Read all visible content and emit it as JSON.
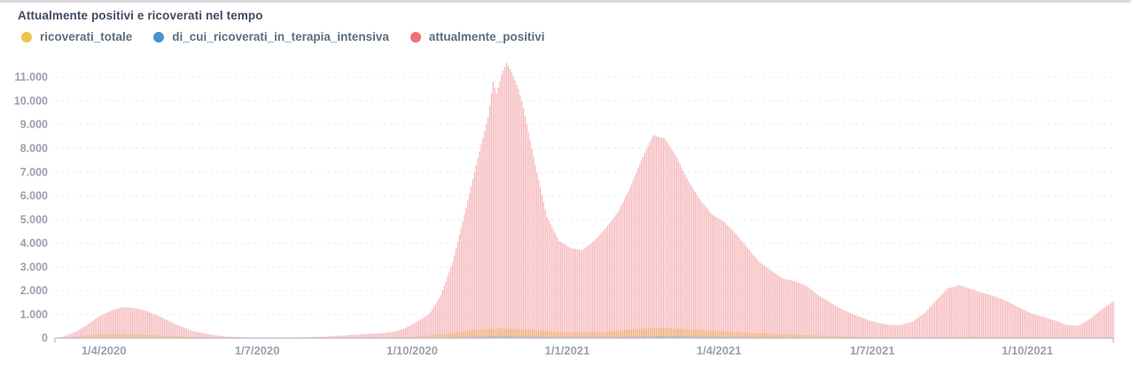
{
  "page": {
    "title": "Attualmente positivi e ricoverati nel tempo"
  },
  "chart_data": {
    "type": "bar",
    "title": "Attualmente positivi e ricoverati nel tempo",
    "xlabel": "",
    "ylabel": "",
    "grid": "horizontal-dashed",
    "legend_position": "top-left",
    "y_axis": {
      "min": 0,
      "max": 11000,
      "step": 1000,
      "number_format": "it (1.000)"
    },
    "x_axis": {
      "start_date": "2020-03-03",
      "end_date": "2021-11-21",
      "tick_labels": [
        "1/4/2020",
        "1/7/2020",
        "1/10/2020",
        "1/1/2021",
        "1/4/2021",
        "1/7/2021",
        "1/10/2021"
      ],
      "tick_dates": [
        "2020-04-01",
        "2020-07-01",
        "2020-10-01",
        "2021-01-01",
        "2021-04-01",
        "2021-07-01",
        "2021-10-01"
      ]
    },
    "series": [
      {
        "name": "ricoverati_totale",
        "color": "#efc24b",
        "bar_color": "#f2ad74",
        "bar_opacity": 1,
        "z": 1,
        "points": [
          [
            "2020-03-03",
            0
          ],
          [
            "2020-03-08",
            15
          ],
          [
            "2020-03-15",
            60
          ],
          [
            "2020-03-22",
            110
          ],
          [
            "2020-03-29",
            150
          ],
          [
            "2020-04-05",
            170
          ],
          [
            "2020-04-12",
            180
          ],
          [
            "2020-04-19",
            165
          ],
          [
            "2020-04-26",
            140
          ],
          [
            "2020-05-03",
            115
          ],
          [
            "2020-05-10",
            90
          ],
          [
            "2020-05-17",
            70
          ],
          [
            "2020-05-24",
            50
          ],
          [
            "2020-05-31",
            35
          ],
          [
            "2020-06-07",
            25
          ],
          [
            "2020-06-14",
            18
          ],
          [
            "2020-06-21",
            12
          ],
          [
            "2020-06-28",
            10
          ],
          [
            "2020-07-05",
            8
          ],
          [
            "2020-07-12",
            8
          ],
          [
            "2020-07-19",
            8
          ],
          [
            "2020-07-26",
            9
          ],
          [
            "2020-08-02",
            10
          ],
          [
            "2020-08-09",
            14
          ],
          [
            "2020-08-16",
            18
          ],
          [
            "2020-08-23",
            22
          ],
          [
            "2020-08-30",
            25
          ],
          [
            "2020-09-06",
            30
          ],
          [
            "2020-09-13",
            35
          ],
          [
            "2020-09-20",
            40
          ],
          [
            "2020-09-27",
            45
          ],
          [
            "2020-10-04",
            70
          ],
          [
            "2020-10-11",
            110
          ],
          [
            "2020-10-18",
            160
          ],
          [
            "2020-10-25",
            220
          ],
          [
            "2020-11-01",
            290
          ],
          [
            "2020-11-08",
            350
          ],
          [
            "2020-11-15",
            390
          ],
          [
            "2020-11-22",
            410
          ],
          [
            "2020-11-29",
            400
          ],
          [
            "2020-12-06",
            370
          ],
          [
            "2020-12-13",
            330
          ],
          [
            "2020-12-20",
            290
          ],
          [
            "2020-12-27",
            260
          ],
          [
            "2021-01-03",
            240
          ],
          [
            "2021-01-10",
            235
          ],
          [
            "2021-01-17",
            240
          ],
          [
            "2021-01-24",
            260
          ],
          [
            "2021-01-31",
            300
          ],
          [
            "2021-02-07",
            350
          ],
          [
            "2021-02-14",
            400
          ],
          [
            "2021-02-21",
            430
          ],
          [
            "2021-02-28",
            425
          ],
          [
            "2021-03-07",
            400
          ],
          [
            "2021-03-14",
            370
          ],
          [
            "2021-03-21",
            340
          ],
          [
            "2021-03-28",
            310
          ],
          [
            "2021-04-04",
            280
          ],
          [
            "2021-04-11",
            250
          ],
          [
            "2021-04-18",
            230
          ],
          [
            "2021-04-25",
            210
          ],
          [
            "2021-05-02",
            190
          ],
          [
            "2021-05-09",
            170
          ],
          [
            "2021-05-16",
            150
          ],
          [
            "2021-05-23",
            130
          ],
          [
            "2021-05-30",
            110
          ],
          [
            "2021-06-06",
            90
          ],
          [
            "2021-06-13",
            70
          ],
          [
            "2021-06-20",
            55
          ],
          [
            "2021-06-27",
            45
          ],
          [
            "2021-07-04",
            35
          ],
          [
            "2021-07-11",
            30
          ],
          [
            "2021-07-18",
            28
          ],
          [
            "2021-07-25",
            30
          ],
          [
            "2021-08-01",
            35
          ],
          [
            "2021-08-08",
            45
          ],
          [
            "2021-08-15",
            55
          ],
          [
            "2021-08-22",
            60
          ],
          [
            "2021-08-29",
            60
          ],
          [
            "2021-09-05",
            55
          ],
          [
            "2021-09-12",
            50
          ],
          [
            "2021-09-19",
            45
          ],
          [
            "2021-09-26",
            40
          ],
          [
            "2021-10-03",
            35
          ],
          [
            "2021-10-10",
            30
          ],
          [
            "2021-10-17",
            28
          ],
          [
            "2021-10-24",
            25
          ],
          [
            "2021-10-31",
            25
          ],
          [
            "2021-11-07",
            28
          ],
          [
            "2021-11-14",
            32
          ],
          [
            "2021-11-21",
            38
          ]
        ]
      },
      {
        "name": "di_cui_ricoverati_in_terapia_intensiva",
        "color": "#4a90d9",
        "bar_color": "#4a90d9",
        "bar_opacity": 0.5,
        "z": 2,
        "points": [
          [
            "2020-03-03",
            2
          ],
          [
            "2020-03-15",
            8
          ],
          [
            "2020-03-29",
            18
          ],
          [
            "2020-04-12",
            20
          ],
          [
            "2020-04-26",
            14
          ],
          [
            "2020-05-10",
            8
          ],
          [
            "2020-05-24",
            4
          ],
          [
            "2020-06-07",
            2
          ],
          [
            "2020-07-05",
            1
          ],
          [
            "2020-08-02",
            2
          ],
          [
            "2020-08-30",
            5
          ],
          [
            "2020-09-27",
            10
          ],
          [
            "2020-10-11",
            20
          ],
          [
            "2020-10-25",
            35
          ],
          [
            "2020-11-08",
            60
          ],
          [
            "2020-11-22",
            78
          ],
          [
            "2020-12-06",
            70
          ],
          [
            "2020-12-20",
            55
          ],
          [
            "2021-01-03",
            48
          ],
          [
            "2021-01-17",
            45
          ],
          [
            "2021-01-31",
            52
          ],
          [
            "2021-02-14",
            65
          ],
          [
            "2021-02-28",
            78
          ],
          [
            "2021-03-14",
            72
          ],
          [
            "2021-03-28",
            60
          ],
          [
            "2021-04-11",
            50
          ],
          [
            "2021-04-25",
            42
          ],
          [
            "2021-05-09",
            32
          ],
          [
            "2021-05-23",
            22
          ],
          [
            "2021-06-06",
            14
          ],
          [
            "2021-06-20",
            8
          ],
          [
            "2021-07-04",
            4
          ],
          [
            "2021-07-18",
            3
          ],
          [
            "2021-08-01",
            5
          ],
          [
            "2021-08-15",
            9
          ],
          [
            "2021-08-29",
            11
          ],
          [
            "2021-09-12",
            10
          ],
          [
            "2021-09-26",
            8
          ],
          [
            "2021-10-10",
            6
          ],
          [
            "2021-10-24",
            5
          ],
          [
            "2021-11-07",
            6
          ],
          [
            "2021-11-21",
            8
          ]
        ]
      },
      {
        "name": "attualmente_positivi",
        "color": "#ed7176",
        "bar_color": "#f5b5b8",
        "bar_opacity": 1,
        "z": 0,
        "points": [
          [
            "2020-03-03",
            5
          ],
          [
            "2020-03-08",
            60
          ],
          [
            "2020-03-15",
            250
          ],
          [
            "2020-03-22",
            550
          ],
          [
            "2020-03-29",
            900
          ],
          [
            "2020-04-05",
            1150
          ],
          [
            "2020-04-12",
            1300
          ],
          [
            "2020-04-19",
            1270
          ],
          [
            "2020-04-26",
            1150
          ],
          [
            "2020-05-03",
            950
          ],
          [
            "2020-05-10",
            700
          ],
          [
            "2020-05-17",
            480
          ],
          [
            "2020-05-24",
            300
          ],
          [
            "2020-05-31",
            190
          ],
          [
            "2020-06-07",
            110
          ],
          [
            "2020-06-14",
            60
          ],
          [
            "2020-06-21",
            40
          ],
          [
            "2020-06-28",
            25
          ],
          [
            "2020-07-05",
            20
          ],
          [
            "2020-07-12",
            18
          ],
          [
            "2020-07-19",
            22
          ],
          [
            "2020-07-26",
            30
          ],
          [
            "2020-08-02",
            40
          ],
          [
            "2020-08-09",
            60
          ],
          [
            "2020-08-16",
            90
          ],
          [
            "2020-08-23",
            120
          ],
          [
            "2020-08-30",
            150
          ],
          [
            "2020-09-06",
            180
          ],
          [
            "2020-09-13",
            210
          ],
          [
            "2020-09-20",
            260
          ],
          [
            "2020-09-27",
            420
          ],
          [
            "2020-10-04",
            700
          ],
          [
            "2020-10-11",
            1000
          ],
          [
            "2020-10-18",
            1800
          ],
          [
            "2020-10-25",
            3200
          ],
          [
            "2020-11-01",
            5200
          ],
          [
            "2020-11-08",
            7300
          ],
          [
            "2020-11-15",
            9300
          ],
          [
            "2020-11-18",
            10800
          ],
          [
            "2020-11-20",
            10300
          ],
          [
            "2020-11-23",
            11100
          ],
          [
            "2020-11-26",
            11600
          ],
          [
            "2020-11-29",
            11200
          ],
          [
            "2020-12-03",
            10500
          ],
          [
            "2020-12-06",
            9700
          ],
          [
            "2020-12-13",
            7300
          ],
          [
            "2020-12-20",
            5100
          ],
          [
            "2020-12-27",
            4100
          ],
          [
            "2021-01-03",
            3800
          ],
          [
            "2021-01-10",
            3700
          ],
          [
            "2021-01-17",
            4100
          ],
          [
            "2021-01-24",
            4650
          ],
          [
            "2021-01-31",
            5300
          ],
          [
            "2021-02-07",
            6300
          ],
          [
            "2021-02-14",
            7500
          ],
          [
            "2021-02-21",
            8550
          ],
          [
            "2021-02-28",
            8400
          ],
          [
            "2021-03-07",
            7600
          ],
          [
            "2021-03-14",
            6600
          ],
          [
            "2021-03-21",
            5800
          ],
          [
            "2021-03-28",
            5200
          ],
          [
            "2021-04-04",
            4900
          ],
          [
            "2021-04-11",
            4400
          ],
          [
            "2021-04-18",
            3800
          ],
          [
            "2021-04-25",
            3200
          ],
          [
            "2021-05-02",
            2850
          ],
          [
            "2021-05-09",
            2500
          ],
          [
            "2021-05-16",
            2400
          ],
          [
            "2021-05-23",
            2200
          ],
          [
            "2021-05-30",
            1800
          ],
          [
            "2021-06-06",
            1500
          ],
          [
            "2021-06-13",
            1200
          ],
          [
            "2021-06-20",
            1000
          ],
          [
            "2021-06-27",
            800
          ],
          [
            "2021-07-04",
            650
          ],
          [
            "2021-07-11",
            560
          ],
          [
            "2021-07-18",
            550
          ],
          [
            "2021-07-25",
            700
          ],
          [
            "2021-08-01",
            1050
          ],
          [
            "2021-08-08",
            1600
          ],
          [
            "2021-08-15",
            2100
          ],
          [
            "2021-08-22",
            2230
          ],
          [
            "2021-08-29",
            2050
          ],
          [
            "2021-09-05",
            1900
          ],
          [
            "2021-09-12",
            1750
          ],
          [
            "2021-09-19",
            1550
          ],
          [
            "2021-09-26",
            1300
          ],
          [
            "2021-10-03",
            1050
          ],
          [
            "2021-10-10",
            900
          ],
          [
            "2021-10-17",
            750
          ],
          [
            "2021-10-24",
            560
          ],
          [
            "2021-10-31",
            520
          ],
          [
            "2021-11-07",
            800
          ],
          [
            "2021-11-14",
            1200
          ],
          [
            "2021-11-21",
            1550
          ]
        ]
      }
    ]
  }
}
